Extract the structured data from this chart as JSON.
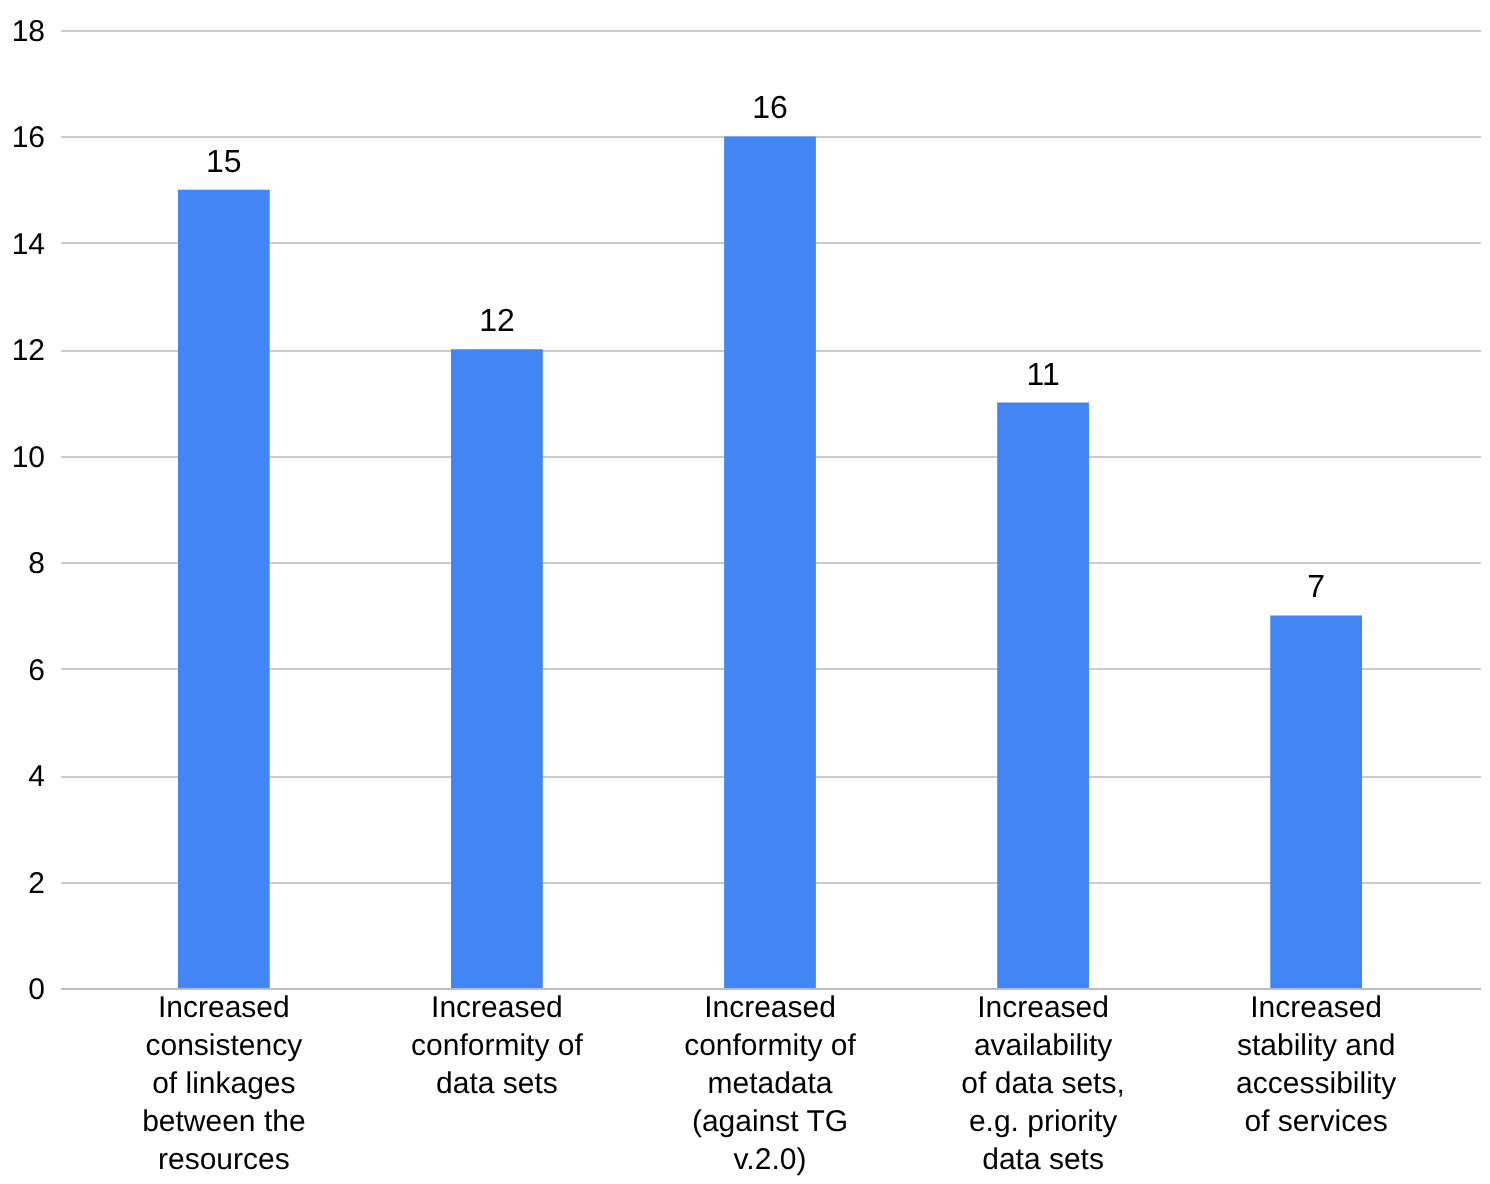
{
  "chart_data": {
    "type": "bar",
    "categories": [
      "Increased consistency of linkages between the resources",
      "Increased conformity of data sets",
      "Increased conformity of metadata (against TG v.2.0)",
      "Increased availability of data sets, e.g. priority data sets",
      "Increased stability and accessibility of services"
    ],
    "values": [
      15,
      12,
      16,
      11,
      7
    ],
    "color": "#4285f4",
    "ylim": [
      0,
      18
    ],
    "yticks": [
      0,
      2,
      4,
      6,
      8,
      10,
      12,
      14,
      16,
      18
    ],
    "grid": "y",
    "data_labels": true
  }
}
